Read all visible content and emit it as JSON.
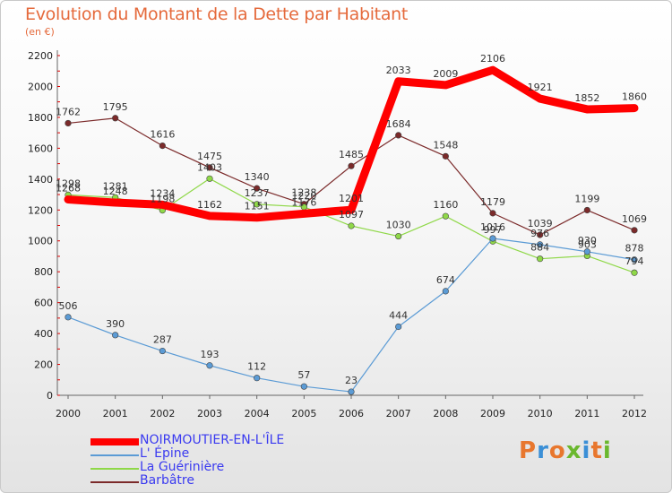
{
  "title": "Evolution du Montant de la Dette par Habitant",
  "unit_label": "(en €)",
  "logo": {
    "text": "Proxiti",
    "letter_colors": [
      "#e8772e",
      "#3b8fd6",
      "#e8772e",
      "#6ab82e",
      "#3b8fd6",
      "#e8772e",
      "#6ab82e"
    ]
  },
  "chart_data": {
    "type": "line",
    "title": "Evolution du Montant de la Dette par Habitant",
    "ylabel": "(en €)",
    "xlabel": "",
    "x": [
      "2000",
      "2001",
      "2002",
      "2003",
      "2004",
      "2005",
      "2006",
      "2007",
      "2008",
      "2009",
      "2010",
      "2011",
      "2012"
    ],
    "ylim": [
      0,
      2200
    ],
    "yticks": [
      0,
      200,
      400,
      600,
      800,
      1000,
      1200,
      1400,
      1600,
      1800,
      2000,
      2200
    ],
    "grid": false,
    "legend": "bottom-left",
    "series": [
      {
        "name": "NOIRMOUTIER-EN-L'ÎLE",
        "color": "#ff0000",
        "values": [
          1268,
          1248,
          1234,
          1162,
          1151,
          1176,
          1201,
          2033,
          2009,
          2106,
          1921,
          1852,
          1860
        ]
      },
      {
        "name": "L' Épine",
        "color": "#5b9bd5",
        "values": [
          506,
          390,
          287,
          193,
          112,
          57,
          23,
          444,
          674,
          1016,
          976,
          930,
          878
        ]
      },
      {
        "name": "La Guérinière",
        "color": "#8fd848",
        "values": [
          1298,
          1281,
          1198,
          1403,
          1237,
          1220,
          1097,
          1030,
          1160,
          997,
          884,
          903,
          794
        ]
      },
      {
        "name": "Barbâtre",
        "color": "#7b2a2a",
        "values": [
          1762,
          1795,
          1616,
          1475,
          1340,
          1238,
          1485,
          1684,
          1548,
          1179,
          1039,
          1199,
          1069
        ]
      }
    ]
  }
}
